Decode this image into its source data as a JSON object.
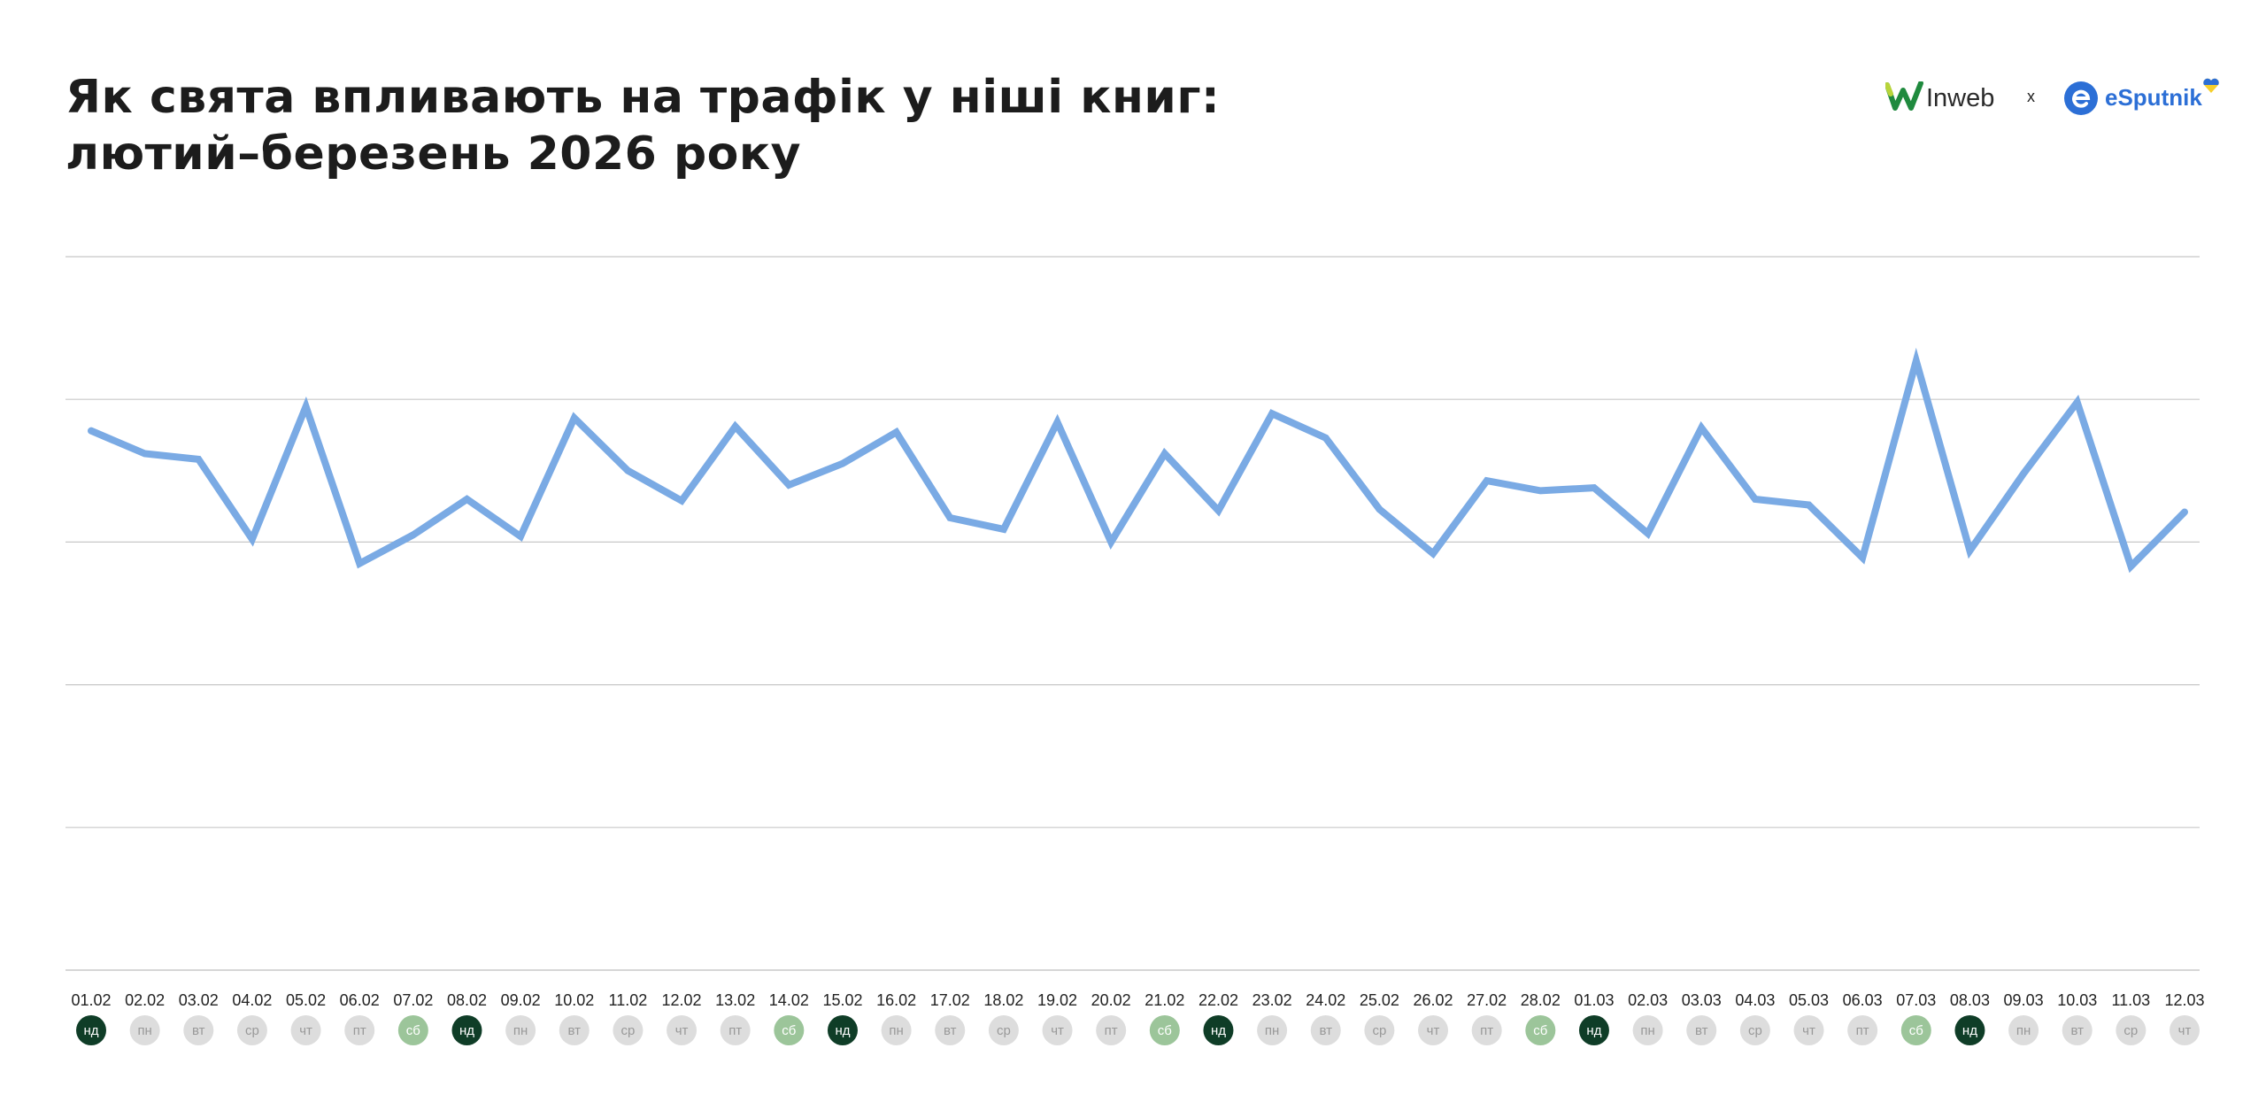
{
  "title": {
    "line1": "Як свята впливають на трафік у ніші книг:",
    "line2": "лютий–березень 2026 року"
  },
  "logos": {
    "left": "Inweb",
    "separator": "x",
    "right": "eSputnik"
  },
  "colors": {
    "line": "#7aaae4",
    "grid": "#c8c8c8",
    "weekday": "#dddddd",
    "weekday_text": "#999999",
    "saturday": "#9cc59a",
    "sunday": "#0f3d27",
    "title": "#1c1c1c"
  },
  "chart_data": {
    "type": "line",
    "title": "Як свята впливають на трафік у ніші книг: лютий–березень 2026 року",
    "xlabel": "",
    "ylabel": "",
    "yticks_labeled": false,
    "ylim": [
      0,
      5
    ],
    "grid": true,
    "categories": [
      "01.02",
      "02.02",
      "03.02",
      "04.02",
      "05.02",
      "06.02",
      "07.02",
      "08.02",
      "09.02",
      "10.02",
      "11.02",
      "12.02",
      "13.02",
      "14.02",
      "15.02",
      "16.02",
      "17.02",
      "18.02",
      "19.02",
      "20.02",
      "21.02",
      "22.02",
      "23.02",
      "24.02",
      "25.02",
      "26.02",
      "27.02",
      "28.02",
      "01.03",
      "02.03",
      "03.03",
      "04.03",
      "05.03",
      "06.03",
      "07.03",
      "08.03",
      "09.03",
      "10.03",
      "11.03",
      "12.03"
    ],
    "weekdays": [
      "нд",
      "пн",
      "вт",
      "ср",
      "чт",
      "пт",
      "сб",
      "нд",
      "пн",
      "вт",
      "ср",
      "чт",
      "пт",
      "сб",
      "нд",
      "пн",
      "вт",
      "ср",
      "чт",
      "пт",
      "сб",
      "нд",
      "пн",
      "вт",
      "ср",
      "чт",
      "пт",
      "сб",
      "нд",
      "пн",
      "вт",
      "ср",
      "чт",
      "пт",
      "сб",
      "нд",
      "пн",
      "вт",
      "ср",
      "чт"
    ],
    "series": [
      {
        "values": [
          3.78,
          3.62,
          3.58,
          3.02,
          3.95,
          2.85,
          3.05,
          3.3,
          3.04,
          3.87,
          3.5,
          3.29,
          3.81,
          3.4,
          3.55,
          3.77,
          3.17,
          3.09,
          3.84,
          3.0,
          3.62,
          3.22,
          3.9,
          3.73,
          3.23,
          2.92,
          3.43,
          3.36,
          3.38,
          3.06,
          3.8,
          3.3,
          3.26,
          2.89,
          4.27,
          2.94,
          3.48,
          3.98,
          2.83,
          3.21
        ]
      }
    ]
  }
}
